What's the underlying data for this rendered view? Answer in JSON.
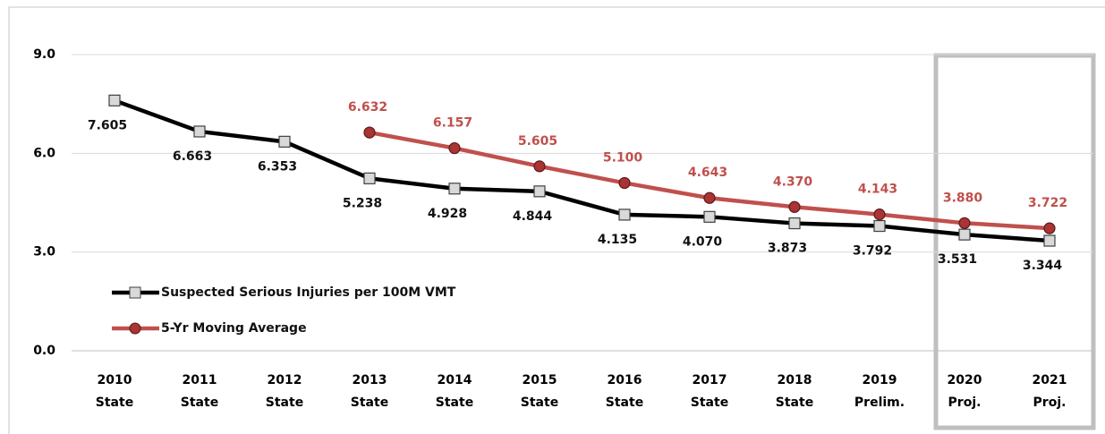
{
  "chart_data": {
    "type": "line",
    "categories": [
      "2010 State",
      "2011 State",
      "2012 State",
      "2013 State",
      "2014 State",
      "2015 State",
      "2016 State",
      "2017 State",
      "2018 State",
      "2019 Prelim.",
      "2020 Proj.",
      "2021 Proj."
    ],
    "series": [
      {
        "name": "Suspected Serious Injuries per 100M VMT",
        "color": "#000000",
        "marker": "square",
        "label_position": "below",
        "values": [
          7.605,
          6.663,
          6.353,
          5.238,
          4.928,
          4.844,
          4.135,
          4.07,
          3.873,
          3.792,
          3.531,
          3.344
        ],
        "value_labels": [
          "7.605",
          "6.663",
          "6.353",
          "5.238",
          "4.928",
          "4.844",
          "4.135",
          "4.070",
          "3.873",
          "3.792",
          "3.531",
          "3.344"
        ]
      },
      {
        "name": "5-Yr Moving Average",
        "color": "#c0504d",
        "marker": "circle",
        "label_position": "above",
        "values": [
          null,
          null,
          null,
          6.632,
          6.157,
          5.605,
          5.1,
          4.643,
          4.37,
          4.143,
          3.88,
          3.722
        ],
        "value_labels": [
          null,
          null,
          null,
          "6.632",
          "6.157",
          "5.605",
          "5.100",
          "4.643",
          "4.370",
          "4.143",
          "3.880",
          "3.722"
        ]
      }
    ],
    "ylim": [
      0,
      9
    ],
    "yticks": [
      {
        "value": 0,
        "label": "0.0"
      },
      {
        "value": 3,
        "label": "3.0"
      },
      {
        "value": 6,
        "label": "6.0"
      },
      {
        "value": 9,
        "label": "9.0"
      }
    ],
    "grid": true
  }
}
